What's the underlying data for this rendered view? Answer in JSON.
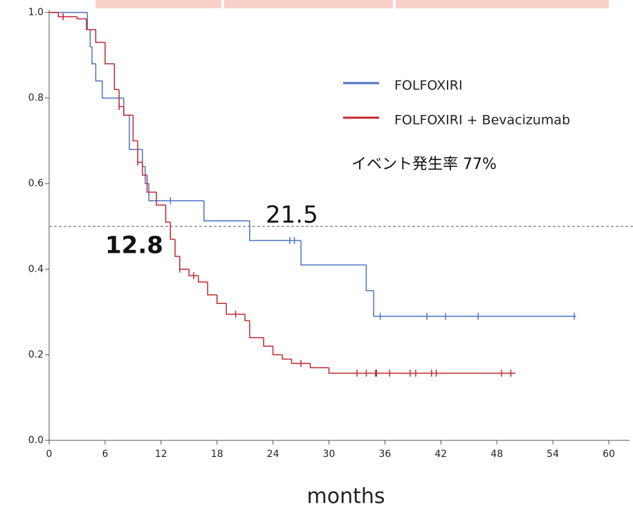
{
  "chart_data": {
    "type": "step",
    "x_label": "months",
    "xlim": [
      0,
      60
    ],
    "xticks": [
      0,
      6,
      12,
      18,
      24,
      30,
      36,
      42,
      48,
      54,
      60
    ],
    "ylim": [
      0,
      1
    ],
    "yticks": [
      {
        "value": 0,
        "label": "0.0"
      },
      0.2,
      0.4,
      0.6,
      0.8,
      {
        "value": 1,
        "label": "1.0"
      }
    ],
    "reference_line": 0.5,
    "legend": "upper right",
    "series": [
      {
        "name": "FOLFOXIRI",
        "color": "#4a72c4",
        "x": [
          0,
          4.1,
          4.4,
          4.6,
          5.0,
          5.7,
          8.0,
          8.6,
          9.5,
          10.0,
          10.3,
          10.7,
          16.6,
          21.5,
          27.0,
          34.0,
          34.8,
          56.5
        ],
        "values": [
          1,
          0.96,
          0.92,
          0.88,
          0.84,
          0.8,
          0.76,
          0.68,
          0.68,
          0.64,
          0.6,
          0.56,
          0.513,
          0.467,
          0.41,
          0.35,
          0.29,
          0.29
        ],
        "censored": [
          13,
          25.8,
          26.3,
          35.5,
          40.5,
          42.5,
          46,
          56.3
        ]
      },
      {
        "name": "FOLFOXIRI + Bevacizumab",
        "color": "#c0282d",
        "x": [
          0,
          1.0,
          3.0,
          4.0,
          5.0,
          6.0,
          7.0,
          7.5,
          8.0,
          9.0,
          9.5,
          10.0,
          10.5,
          11.5,
          12.5,
          13.0,
          13.5,
          14.0,
          15.0,
          16.0,
          17.0,
          18.0,
          19.0,
          21.0,
          21.5,
          23.0,
          24.0,
          25.0,
          26.0,
          28.0,
          30.0,
          50.0
        ],
        "values": [
          1,
          0.99,
          0.985,
          0.96,
          0.93,
          0.88,
          0.82,
          0.78,
          0.76,
          0.7,
          0.65,
          0.62,
          0.58,
          0.55,
          0.51,
          0.47,
          0.43,
          0.4,
          0.385,
          0.37,
          0.34,
          0.32,
          0.295,
          0.28,
          0.24,
          0.22,
          0.2,
          0.19,
          0.18,
          0.17,
          0.157,
          0.157
        ],
        "censored": [
          1.5,
          7.5,
          9.5,
          14,
          15.5,
          20,
          27,
          33,
          34,
          35,
          35.1,
          36.5,
          38.7,
          39.3,
          41,
          41.5,
          48.5,
          49.5
        ]
      }
    ],
    "annotations": [
      {
        "text": "21.5",
        "x": 21.5,
        "y": 0.5
      },
      {
        "text": "12.8",
        "x": 12.8,
        "y": 0.5
      },
      {
        "text": "イベント発生率 77%",
        "x": 32,
        "y": 0.64
      }
    ]
  }
}
